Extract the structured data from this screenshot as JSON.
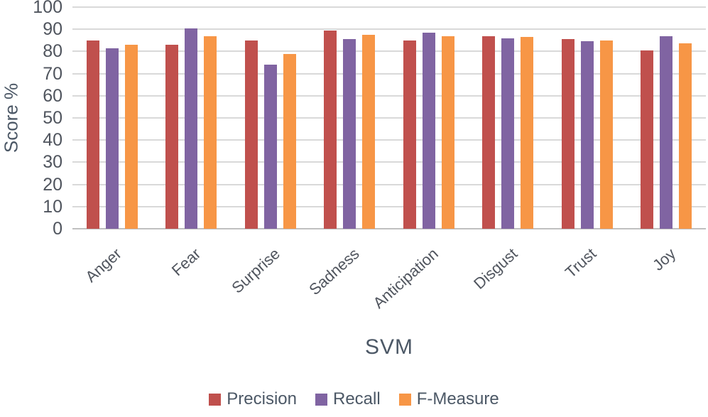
{
  "chart_data": {
    "type": "bar",
    "title": "",
    "xlabel": "SVM",
    "ylabel": "Score %",
    "ylim": [
      0,
      100
    ],
    "ytick_step": 10,
    "yticks": [
      0,
      10,
      20,
      30,
      40,
      50,
      60,
      70,
      80,
      90,
      100
    ],
    "grid": true,
    "legend_position": "bottom",
    "categories": [
      "Anger",
      "Fear",
      "Surprise",
      "Sadness",
      "Anticipation",
      "Disgust",
      "Trust",
      "Joy"
    ],
    "series": [
      {
        "name": "Precision",
        "color": "#C0504D",
        "values": [
          85,
          83,
          85,
          89.5,
          85,
          87,
          85.5,
          80.5
        ]
      },
      {
        "name": "Recall",
        "color": "#8064A2",
        "values": [
          81.5,
          90.5,
          74,
          85.5,
          88.5,
          86,
          84.5,
          87
        ]
      },
      {
        "name": "F-Measure",
        "color": "#F79646",
        "values": [
          83,
          87,
          79,
          87.5,
          87,
          86.5,
          85,
          83.5
        ]
      }
    ]
  },
  "colors": {
    "gridline": "#D9D9D9",
    "axis_line": "#C0C0C0",
    "tick_text": "#50555E",
    "category_text": "#50555E",
    "axis_title_text": "#4C5866",
    "legend_text": "#4C5866",
    "background": "#FFFFFF"
  }
}
